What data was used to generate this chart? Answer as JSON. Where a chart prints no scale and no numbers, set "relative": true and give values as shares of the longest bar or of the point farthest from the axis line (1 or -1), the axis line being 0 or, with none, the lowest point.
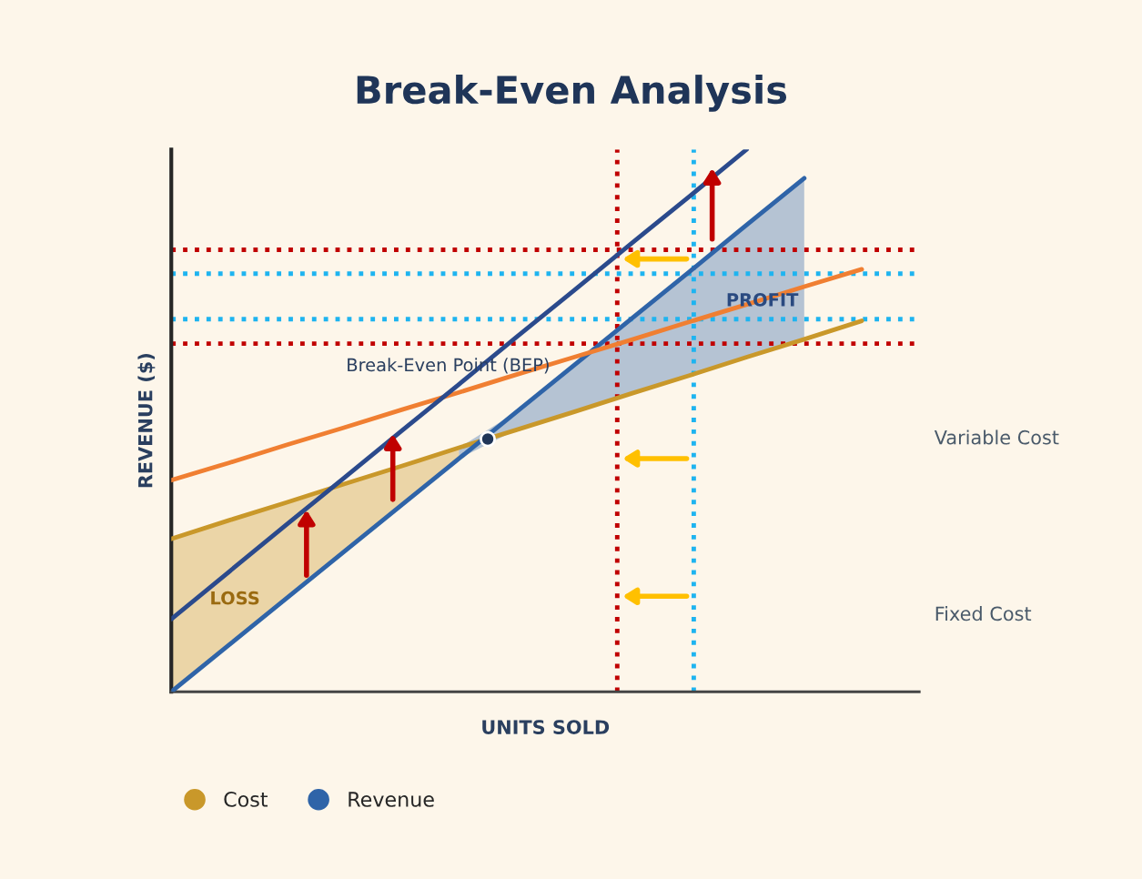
{
  "chart_data": {
    "type": "line",
    "title": "Break-Even Analysis",
    "xlabel": "UNITS SOLD",
    "ylabel": "REVENUE ($)",
    "relative": true,
    "legend": "bottom",
    "marker": "none",
    "categories": [
      null,
      null,
      null,
      null,
      null,
      null,
      null,
      null,
      null,
      null,
      null,
      null,
      null
    ],
    "series": [
      {
        "name": "Cost",
        "color": "#c9982a",
        "values": [
          0.282,
          0.316,
          0.349,
          0.383,
          0.416,
          0.45,
          0.483,
          0.516,
          0.55,
          0.583,
          0.617,
          0.65,
          0.684
        ],
        "lower": [
          0,
          0.086,
          0.172,
          0.258,
          0.344,
          0.43,
          null,
          null,
          null,
          null,
          null,
          null,
          null
        ],
        "upper": [
          0.282,
          0.316,
          0.349,
          0.383,
          0.416,
          0.45,
          null,
          null,
          null,
          null,
          null,
          null,
          null
        ]
      },
      {
        "name": "Revenue",
        "color": "#2f64a8",
        "values": [
          0,
          0.086,
          0.172,
          0.258,
          0.344,
          0.43,
          0.516,
          0.602,
          0.688,
          0.774,
          0.861,
          0.947,
          null
        ],
        "lower": [
          null,
          null,
          null,
          null,
          null,
          0.43,
          0.483,
          0.516,
          0.55,
          0.583,
          0.617,
          0.65,
          null
        ],
        "upper": [
          null,
          null,
          null,
          null,
          null,
          0.45,
          0.516,
          0.602,
          0.688,
          0.774,
          0.861,
          0.947,
          null
        ]
      },
      {
        "color": "#f07f32",
        "values": [
          0.39,
          0.422,
          0.455,
          0.487,
          0.52,
          0.552,
          0.585,
          0.617,
          0.649,
          0.682,
          0.714,
          0.747,
          0.779
        ]
      },
      {
        "color": "#2b4a8c",
        "values": [
          0.134,
          0.221,
          0.308,
          0.394,
          0.481,
          0.567,
          0.654,
          0.74,
          0.827,
          0.913,
          1.0,
          null,
          null
        ]
      }
    ],
    "ref_lines": [
      {
        "axis": "y",
        "value": 0.815,
        "color": "#c00000",
        "line_style": "dotted"
      },
      {
        "axis": "y",
        "value": 0.642,
        "color": "#c00000",
        "line_style": "dotted"
      },
      {
        "axis": "y",
        "value": 0.771,
        "color": "#1eb4f0",
        "line_style": "dotted"
      },
      {
        "axis": "y",
        "value": 0.687,
        "color": "#1eb4f0",
        "line_style": "dotted"
      }
    ],
    "annotations": [
      "Break-Even Point (BEP)",
      "PROFIT",
      "LOSS",
      "Variable Cost",
      "Fixed Cost"
    ]
  }
}
